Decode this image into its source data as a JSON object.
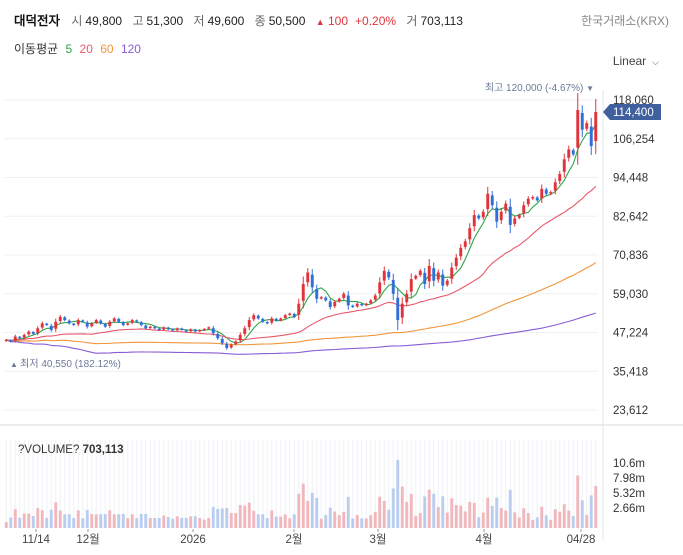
{
  "header": {
    "name": "대덕전자",
    "open_label": "시",
    "open": "49,800",
    "high_label": "고",
    "high": "51,300",
    "low_label": "저",
    "low": "49,600",
    "close_label": "종",
    "close": "50,500",
    "change_arrow": "▲",
    "change": "100",
    "change_pct": "+0.20%",
    "volume_label": "거",
    "volume": "703,113"
  },
  "exchange": "한국거래소(KRX)",
  "moving_average": {
    "label": "이동평균",
    "periods": [
      {
        "text": "5",
        "color": "#2fa54a"
      },
      {
        "text": "20",
        "color": "#e8596a"
      },
      {
        "text": "60",
        "color": "#f0963c"
      },
      {
        "text": "120",
        "color": "#8a5cd6"
      }
    ]
  },
  "scale_mode": "Linear",
  "colors": {
    "up": "#e0343a",
    "down": "#2f6fd8",
    "current_badge": "#3f5f9e",
    "volume": "#d8dff0"
  },
  "chart_data": {
    "type": "candlestick",
    "price_axis": {
      "ticks": [
        "118,060",
        "106,254",
        "94,448",
        "82,642",
        "70,836",
        "59,030",
        "47,224",
        "35,418",
        "23,612"
      ],
      "min": 23612,
      "max": 118060
    },
    "volume_axis": {
      "ticks": [
        "10.6m",
        "7.98m",
        "5.32m",
        "2.66m"
      ],
      "max": 13300000
    },
    "x_ticks": [
      "11/14",
      "12월",
      "2026",
      "2월",
      "3월",
      "4월",
      "04/28"
    ],
    "current_price": "114,400",
    "max_annotation": {
      "label": "최고",
      "value": "120,000 (-4.67%)",
      "arrow": "▼"
    },
    "min_annotation": {
      "arrow": "▲",
      "label": "최저",
      "value": "40,550 (182.12%)"
    },
    "volume_label": "?VOLUME?",
    "volume_value": "703,113",
    "close": [
      45000,
      44500,
      46000,
      45500,
      46500,
      47500,
      46800,
      48500,
      50000,
      49500,
      48000,
      50500,
      52000,
      51000,
      50000,
      49500,
      51000,
      50500,
      49000,
      50000,
      51000,
      50000,
      49000,
      50500,
      51500,
      50500,
      49500,
      50000,
      51000,
      50500,
      49500,
      48500,
      49000,
      48500,
      48000,
      48800,
      48200,
      47800,
      48500,
      48000,
      47500,
      48200,
      47500,
      48000,
      48300,
      48800,
      47000,
      45500,
      44000,
      42500,
      43500,
      44500,
      46500,
      48500,
      51000,
      52500,
      51500,
      50500,
      50000,
      51500,
      50800,
      51500,
      52500,
      53000,
      52000,
      56000,
      62000,
      65500,
      61000,
      57500,
      58000,
      57000,
      55000,
      56500,
      57500,
      59000,
      55500,
      55000,
      56000,
      55500,
      56000,
      57000,
      58500,
      62500,
      66000,
      64000,
      59000,
      51000,
      56000,
      59000,
      63500,
      64500,
      66000,
      62000,
      67500,
      63000,
      65500,
      61500,
      63000,
      67000,
      70000,
      73000,
      75000,
      79000,
      83000,
      82000,
      84000,
      89500,
      86000,
      81000,
      84000,
      86500,
      80000,
      82000,
      83000,
      86000,
      88000,
      88500,
      87500,
      91000,
      89500,
      90000,
      93000,
      95500,
      100000,
      103000,
      101500,
      115000,
      109000,
      111000,
      104000,
      114400
    ]
  }
}
